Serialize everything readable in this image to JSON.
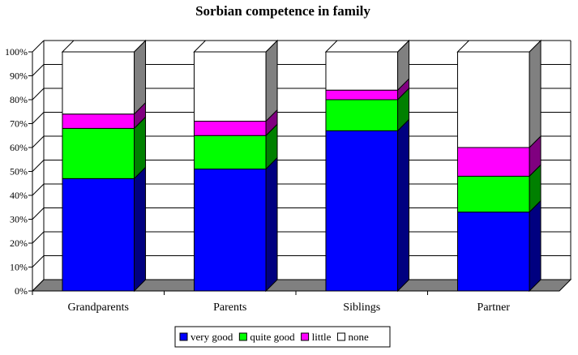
{
  "chart_data": {
    "type": "bar",
    "stacked": "percent",
    "three_d": true,
    "title": "Sorbian competence in family",
    "xlabel": "",
    "ylabel": "",
    "categories": [
      "Grandparents",
      "Parents",
      "Siblings",
      "Partner"
    ],
    "series": [
      {
        "name": "very good",
        "color": "#0000ff",
        "top_color": "#0000ff",
        "side_color": "#000080",
        "values": [
          47,
          51,
          67,
          33
        ]
      },
      {
        "name": "quite good",
        "color": "#00ff00",
        "top_color": "#00ff00",
        "side_color": "#008000",
        "values": [
          21,
          14,
          13,
          15
        ]
      },
      {
        "name": "little",
        "color": "#ff00ff",
        "top_color": "#ff00ff",
        "side_color": "#800080",
        "values": [
          6,
          6,
          4,
          12
        ]
      },
      {
        "name": "none",
        "color": "#ffffff",
        "top_color": "#ffffff",
        "side_color": "#808080",
        "values": [
          26,
          29,
          16,
          40
        ]
      }
    ],
    "ylim": [
      0,
      100
    ],
    "y_ticks": [
      "0%",
      "10%",
      "20%",
      "30%",
      "40%",
      "50%",
      "60%",
      "70%",
      "80%",
      "90%",
      "100%"
    ],
    "grid": true,
    "legend_position": "bottom"
  }
}
